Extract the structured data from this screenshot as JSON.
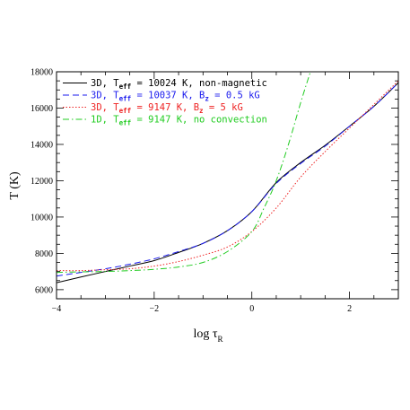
{
  "chart_data": {
    "type": "line",
    "xlabel": "log τ",
    "xlabel_sub": "R",
    "ylabel": "T (K)",
    "xlim": [
      -4,
      3
    ],
    "ylim": [
      5500,
      18000
    ],
    "x_ticks": [
      -4,
      -2,
      0,
      2
    ],
    "y_ticks": [
      6000,
      8000,
      10000,
      12000,
      14000,
      16000,
      18000
    ],
    "legend_position": "top-left",
    "series": [
      {
        "name": "3D, Teff = 10024 K, non-magnetic",
        "legend": {
          "pre": "3D, T",
          "sub": "eff",
          "post": " = 10024 K, non-magnetic"
        },
        "color": "#000000",
        "dash": "solid",
        "points": [
          [
            -4.0,
            6380
          ],
          [
            -3.5,
            6700
          ],
          [
            -3.0,
            7000
          ],
          [
            -2.5,
            7300
          ],
          [
            -2.0,
            7600
          ],
          [
            -1.5,
            8050
          ],
          [
            -1.0,
            8550
          ],
          [
            -0.5,
            9250
          ],
          [
            0.0,
            10300
          ],
          [
            0.5,
            11900
          ],
          [
            1.0,
            13000
          ],
          [
            1.5,
            13950
          ],
          [
            2.0,
            15000
          ],
          [
            2.5,
            16100
          ],
          [
            3.0,
            17400
          ]
        ]
      },
      {
        "name": "3D, Teff = 10037 K, Bz = 0.5 kG",
        "legend": {
          "pre": "3D, T",
          "sub": "eff",
          "post": " = 10037 K, B",
          "sub2": "z",
          "post2": " = 0.5 kG"
        },
        "color": "#1a1aee",
        "dash": "dashed",
        "points": [
          [
            -4.0,
            6750
          ],
          [
            -3.5,
            6950
          ],
          [
            -3.0,
            7150
          ],
          [
            -2.5,
            7400
          ],
          [
            -2.0,
            7700
          ],
          [
            -1.5,
            8100
          ],
          [
            -1.0,
            8550
          ],
          [
            -0.5,
            9250
          ],
          [
            0.0,
            10300
          ],
          [
            0.5,
            11850
          ],
          [
            1.0,
            12950
          ],
          [
            1.5,
            13900
          ],
          [
            2.0,
            15000
          ],
          [
            2.5,
            16100
          ],
          [
            3.0,
            17400
          ]
        ]
      },
      {
        "name": "3D, Teff = 9147 K, Bz = 5 kG",
        "legend": {
          "pre": "3D, T",
          "sub": "eff",
          "post": " = 9147 K, B",
          "sub2": "z",
          "post2": " = 5 kG"
        },
        "color": "#ee2222",
        "dash": "dotted",
        "points": [
          [
            -4.0,
            7050
          ],
          [
            -3.5,
            7050
          ],
          [
            -3.0,
            7100
          ],
          [
            -2.5,
            7150
          ],
          [
            -2.0,
            7300
          ],
          [
            -1.5,
            7550
          ],
          [
            -1.0,
            7900
          ],
          [
            -0.5,
            8350
          ],
          [
            0.0,
            9200
          ],
          [
            0.5,
            10500
          ],
          [
            1.0,
            12200
          ],
          [
            1.5,
            13600
          ],
          [
            2.0,
            14900
          ],
          [
            2.5,
            16200
          ],
          [
            3.0,
            17500
          ]
        ]
      },
      {
        "name": "1D, Teff = 9147 K, no convection",
        "legend": {
          "pre": "1D, T",
          "sub": "eff",
          "post": " = 9147 K, no convection"
        },
        "color": "#22cc22",
        "dash": "dashdot",
        "points": [
          [
            -4.0,
            6950
          ],
          [
            -3.5,
            6980
          ],
          [
            -3.0,
            7000
          ],
          [
            -2.5,
            7050
          ],
          [
            -2.0,
            7120
          ],
          [
            -1.5,
            7250
          ],
          [
            -1.0,
            7500
          ],
          [
            -0.5,
            8100
          ],
          [
            0.0,
            9200
          ],
          [
            0.25,
            10500
          ],
          [
            0.5,
            12000
          ],
          [
            0.75,
            14000
          ],
          [
            1.0,
            16300
          ],
          [
            1.2,
            18000
          ]
        ]
      }
    ]
  }
}
